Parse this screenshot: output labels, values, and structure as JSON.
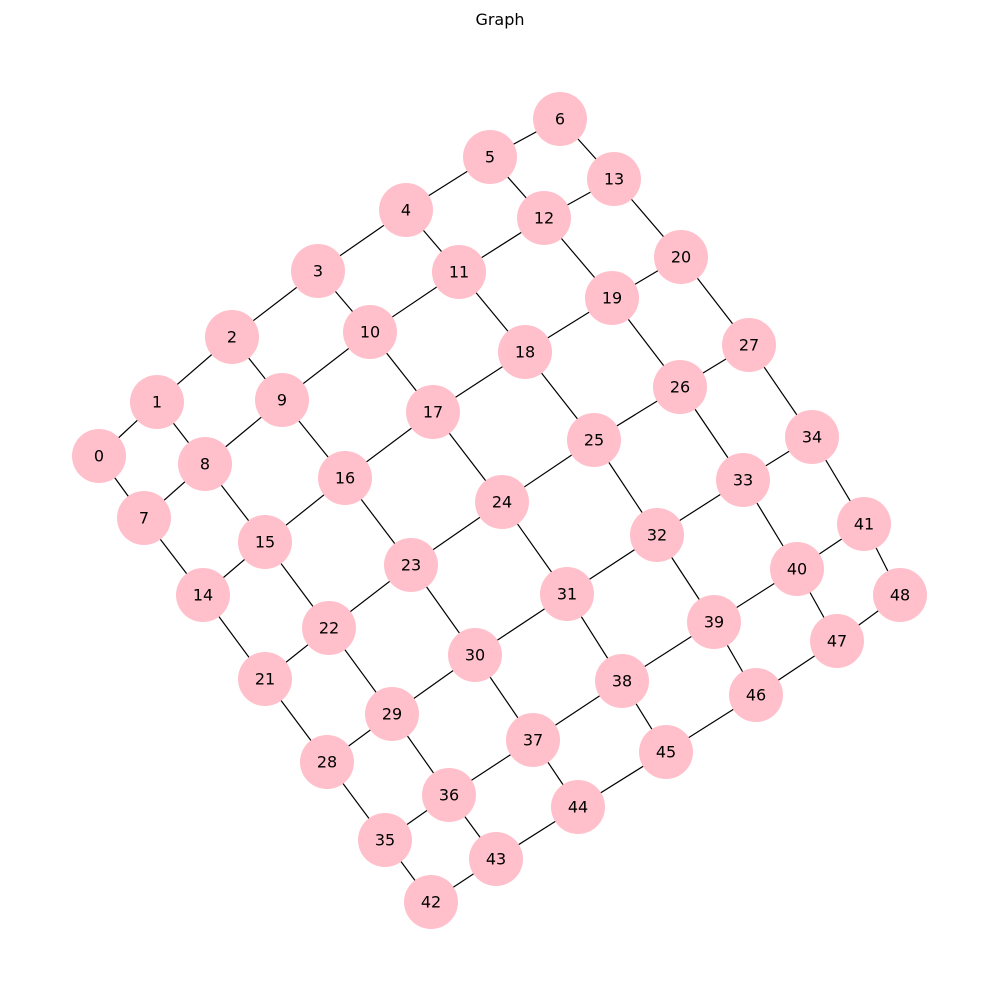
{
  "title": "Graph",
  "colors": {
    "node_fill": "#ffc0cb",
    "edge": "#000000",
    "label": "#000000",
    "background": "#ffffff"
  },
  "grid": {
    "rows": 7,
    "cols": 7
  },
  "nodes": [
    {
      "id": "0"
    },
    {
      "id": "1"
    },
    {
      "id": "2"
    },
    {
      "id": "3"
    },
    {
      "id": "4"
    },
    {
      "id": "5"
    },
    {
      "id": "6"
    },
    {
      "id": "7"
    },
    {
      "id": "8"
    },
    {
      "id": "9"
    },
    {
      "id": "10"
    },
    {
      "id": "11"
    },
    {
      "id": "12"
    },
    {
      "id": "13"
    },
    {
      "id": "14"
    },
    {
      "id": "15"
    },
    {
      "id": "16"
    },
    {
      "id": "17"
    },
    {
      "id": "18"
    },
    {
      "id": "19"
    },
    {
      "id": "20"
    },
    {
      "id": "21"
    },
    {
      "id": "22"
    },
    {
      "id": "23"
    },
    {
      "id": "24"
    },
    {
      "id": "25"
    },
    {
      "id": "26"
    },
    {
      "id": "27"
    },
    {
      "id": "28"
    },
    {
      "id": "29"
    },
    {
      "id": "30"
    },
    {
      "id": "31"
    },
    {
      "id": "32"
    },
    {
      "id": "33"
    },
    {
      "id": "34"
    },
    {
      "id": "35"
    },
    {
      "id": "36"
    },
    {
      "id": "37"
    },
    {
      "id": "38"
    },
    {
      "id": "39"
    },
    {
      "id": "40"
    },
    {
      "id": "41"
    },
    {
      "id": "42"
    },
    {
      "id": "43"
    },
    {
      "id": "44"
    },
    {
      "id": "45"
    },
    {
      "id": "46"
    },
    {
      "id": "47"
    },
    {
      "id": "48"
    }
  ],
  "edges": [
    [
      "0",
      "1"
    ],
    [
      "1",
      "2"
    ],
    [
      "2",
      "3"
    ],
    [
      "3",
      "4"
    ],
    [
      "4",
      "5"
    ],
    [
      "5",
      "6"
    ],
    [
      "7",
      "8"
    ],
    [
      "8",
      "9"
    ],
    [
      "9",
      "10"
    ],
    [
      "10",
      "11"
    ],
    [
      "11",
      "12"
    ],
    [
      "12",
      "13"
    ],
    [
      "14",
      "15"
    ],
    [
      "15",
      "16"
    ],
    [
      "16",
      "17"
    ],
    [
      "17",
      "18"
    ],
    [
      "18",
      "19"
    ],
    [
      "19",
      "20"
    ],
    [
      "21",
      "22"
    ],
    [
      "22",
      "23"
    ],
    [
      "23",
      "24"
    ],
    [
      "24",
      "25"
    ],
    [
      "25",
      "26"
    ],
    [
      "26",
      "27"
    ],
    [
      "28",
      "29"
    ],
    [
      "29",
      "30"
    ],
    [
      "30",
      "31"
    ],
    [
      "31",
      "32"
    ],
    [
      "32",
      "33"
    ],
    [
      "33",
      "34"
    ],
    [
      "35",
      "36"
    ],
    [
      "36",
      "37"
    ],
    [
      "37",
      "38"
    ],
    [
      "38",
      "39"
    ],
    [
      "39",
      "40"
    ],
    [
      "40",
      "41"
    ],
    [
      "42",
      "43"
    ],
    [
      "43",
      "44"
    ],
    [
      "44",
      "45"
    ],
    [
      "45",
      "46"
    ],
    [
      "46",
      "47"
    ],
    [
      "47",
      "48"
    ],
    [
      "0",
      "7"
    ],
    [
      "7",
      "14"
    ],
    [
      "14",
      "21"
    ],
    [
      "21",
      "28"
    ],
    [
      "28",
      "35"
    ],
    [
      "35",
      "42"
    ],
    [
      "1",
      "8"
    ],
    [
      "8",
      "15"
    ],
    [
      "15",
      "22"
    ],
    [
      "22",
      "29"
    ],
    [
      "29",
      "36"
    ],
    [
      "36",
      "43"
    ],
    [
      "2",
      "9"
    ],
    [
      "9",
      "16"
    ],
    [
      "16",
      "23"
    ],
    [
      "23",
      "30"
    ],
    [
      "30",
      "37"
    ],
    [
      "37",
      "44"
    ],
    [
      "3",
      "10"
    ],
    [
      "10",
      "17"
    ],
    [
      "17",
      "24"
    ],
    [
      "24",
      "31"
    ],
    [
      "31",
      "38"
    ],
    [
      "38",
      "45"
    ],
    [
      "4",
      "11"
    ],
    [
      "11",
      "18"
    ],
    [
      "18",
      "25"
    ],
    [
      "25",
      "32"
    ],
    [
      "32",
      "39"
    ],
    [
      "39",
      "46"
    ],
    [
      "5",
      "12"
    ],
    [
      "12",
      "19"
    ],
    [
      "19",
      "26"
    ],
    [
      "26",
      "33"
    ],
    [
      "33",
      "40"
    ],
    [
      "40",
      "47"
    ],
    [
      "6",
      "13"
    ],
    [
      "13",
      "20"
    ],
    [
      "20",
      "27"
    ],
    [
      "27",
      "34"
    ],
    [
      "34",
      "41"
    ],
    [
      "41",
      "48"
    ]
  ]
}
